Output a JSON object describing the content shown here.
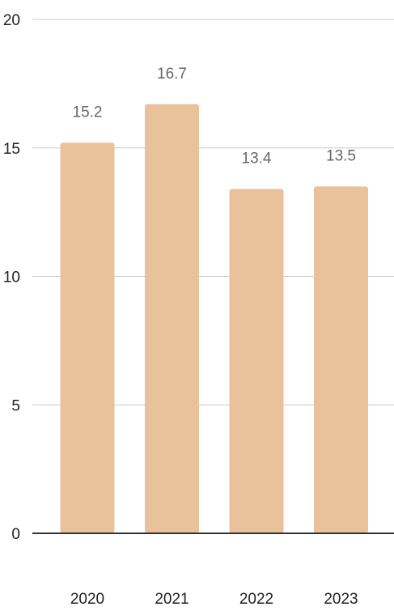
{
  "chart_data": {
    "type": "bar",
    "categories": [
      "2020",
      "2021",
      "2022",
      "2023"
    ],
    "values": [
      15.2,
      16.7,
      13.4,
      13.5
    ],
    "data_labels": [
      "15.2",
      "16.7",
      "13.4",
      "13.5"
    ],
    "title": "",
    "xlabel": "",
    "ylabel": "",
    "ylim": [
      0,
      20
    ],
    "yticks": [
      0,
      5,
      10,
      15,
      20
    ],
    "ytick_labels": [
      "0",
      "5",
      "10",
      "15",
      "20"
    ],
    "grid": true,
    "legend": "none",
    "colors": {
      "bar": "#E9C29C",
      "grid": "#CCCCCC",
      "baseline": "#333333",
      "tick_text": "#222222",
      "data_label": "#666666"
    }
  }
}
